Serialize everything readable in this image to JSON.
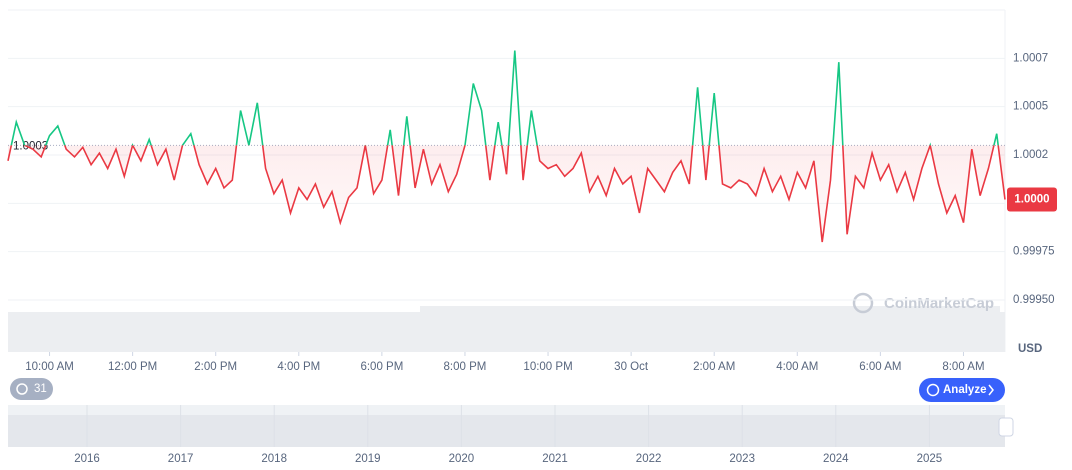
{
  "chart_data": {
    "type": "line",
    "x": [
      -1,
      -0.8,
      -0.6,
      -0.4,
      -0.2,
      0,
      0.2,
      0.4,
      0.6,
      0.8,
      1,
      1.2,
      1.4,
      1.6,
      1.8,
      2,
      2.2,
      2.4,
      2.6,
      2.8,
      3,
      3.2,
      3.4,
      3.6,
      3.8,
      4,
      4.2,
      4.4,
      4.6,
      4.8,
      5,
      5.2,
      5.4,
      5.6,
      5.8,
      6,
      6.2,
      6.4,
      6.6,
      6.8,
      7,
      7.2,
      7.4,
      7.6,
      7.8,
      8,
      8.2,
      8.4,
      8.6,
      8.8,
      9,
      9.2,
      9.4,
      9.6,
      9.8,
      10,
      10.2,
      10.4,
      10.6,
      10.8,
      11,
      11.2,
      11.4,
      11.6,
      11.8,
      12,
      12.2,
      12.4,
      12.6,
      12.8,
      13,
      13.2,
      13.4,
      13.6,
      13.8,
      14,
      14.2,
      14.4,
      14.6,
      14.8,
      15,
      15.2,
      15.4,
      15.6,
      15.8,
      16,
      16.2,
      16.4,
      16.6,
      16.8,
      17,
      17.2,
      17.4,
      17.6,
      17.8,
      18,
      18.2,
      18.4,
      18.6,
      18.8,
      19,
      19.2,
      19.4,
      19.6,
      19.8,
      20,
      20.2,
      20.4,
      20.6,
      20.8,
      21,
      21.2,
      21.4,
      21.6,
      21.8,
      22,
      22.2,
      22.4,
      22.6,
      22.8,
      23
    ],
    "series": [
      {
        "name": "USD",
        "values": [
          1.00022,
          1.00042,
          1.0003,
          1.00028,
          1.00024,
          1.00035,
          1.0004,
          1.00028,
          1.00024,
          1.00029,
          1.0002,
          1.00026,
          1.00018,
          1.00028,
          1.00014,
          1.0003,
          1.00022,
          1.00033,
          1.0002,
          1.00028,
          1.00012,
          1.0003,
          1.00036,
          1.0002,
          1.0001,
          1.00018,
          1.00008,
          1.00012,
          1.00048,
          1.0003,
          1.00052,
          1.00018,
          1.00005,
          1.00012,
          0.99995,
          1.00008,
          1.00002,
          1.0001,
          0.99998,
          1.00006,
          0.9999,
          1.00003,
          1.00008,
          1.0003,
          1.00005,
          1.00012,
          1.00038,
          1.00004,
          1.00045,
          1.00008,
          1.00028,
          1.0001,
          1.0002,
          1.00006,
          1.00015,
          1.0003,
          1.00062,
          1.00048,
          1.00012,
          1.00042,
          1.00015,
          1.00079,
          1.00012,
          1.00048,
          1.00022,
          1.00018,
          1.0002,
          1.00014,
          1.00018,
          1.00026,
          1.00006,
          1.00014,
          1.00004,
          1.00018,
          1.0001,
          1.00014,
          0.99995,
          1.00018,
          1.00012,
          1.00006,
          1.00016,
          1.00022,
          1.0001,
          1.0006,
          1.00012,
          1.00057,
          1.0001,
          1.00008,
          1.00012,
          1.0001,
          1.00004,
          1.00018,
          1.00006,
          1.00014,
          1.00002,
          1.00016,
          1.00008,
          1.00022,
          0.9998,
          1.00012,
          1.00073,
          0.99984,
          1.00014,
          1.00008,
          1.00026,
          1.00012,
          1.0002,
          1.00006,
          1.00016,
          1.00002,
          1.00018,
          1.0003,
          1.0001,
          0.99995,
          1.00004,
          0.9999,
          1.00028,
          1.00004,
          1.00018,
          1.00036,
          1.00002
        ]
      }
    ],
    "colors": {
      "up": "#16c784",
      "down": "#ea3943"
    },
    "baseline": {
      "value": 1.0003,
      "label": "1.0003"
    },
    "last_price_label": "1.0000",
    "xlim": [
      -1,
      23
    ],
    "xticks": [
      {
        "value": 0,
        "label": "10:00 AM"
      },
      {
        "value": 2,
        "label": "12:00 PM"
      },
      {
        "value": 4,
        "label": "2:00 PM"
      },
      {
        "value": 6,
        "label": "4:00 PM"
      },
      {
        "value": 8,
        "label": "6:00 PM"
      },
      {
        "value": 10,
        "label": "8:00 PM"
      },
      {
        "value": 12,
        "label": "10:00 PM"
      },
      {
        "value": 14,
        "label": "30 Oct"
      },
      {
        "value": 16,
        "label": "2:00 AM"
      },
      {
        "value": 18,
        "label": "4:00 AM"
      },
      {
        "value": 20,
        "label": "6:00 AM"
      },
      {
        "value": 22,
        "label": "8:00 AM"
      }
    ],
    "ylim": [
      0.9995,
      1.001
    ],
    "yticks": [
      {
        "value": 1.00075,
        "label": "1.0007"
      },
      1.0005,
      {
        "value": 1.00025,
        "label": "1.0002"
      },
      {
        "value": 1.0,
        "label": "1.0000"
      },
      0.99975,
      {
        "value": 0.9995,
        "label": "0.99950"
      }
    ],
    "y_axis_label": "USD",
    "grid": true,
    "watermark": "CoinMarketCap",
    "history_badge": "31",
    "analyze_button": "Analyze",
    "navigator_years": [
      "2016",
      "2017",
      "2018",
      "2019",
      "2020",
      "2021",
      "2022",
      "2023",
      "2024",
      "2025"
    ]
  }
}
